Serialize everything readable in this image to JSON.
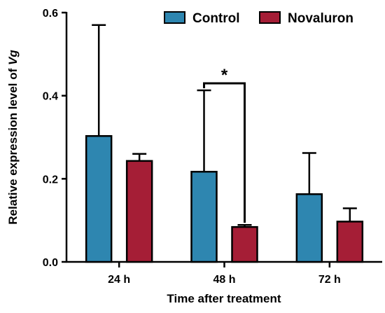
{
  "chart_data": {
    "type": "bar",
    "categories": [
      "24 h",
      "48 h",
      "72 h"
    ],
    "series": [
      {
        "name": "Control",
        "color": "#2e86b0",
        "values": [
          0.303,
          0.217,
          0.163
        ],
        "errors": [
          0.267,
          0.196,
          0.099
        ]
      },
      {
        "name": "Novaluron",
        "color": "#a51e36",
        "values": [
          0.243,
          0.084,
          0.097
        ],
        "errors": [
          0.017,
          0.005,
          0.032
        ]
      }
    ],
    "xlabel": "Time after treatment",
    "ylabel_prefix": "Relative expression level of ",
    "ylabel_gene": "Vg",
    "ylim": [
      0,
      0.6
    ],
    "yticks": [
      0.0,
      0.2,
      0.4,
      0.6
    ],
    "ytick_labels": [
      "0.0",
      "0.2",
      "0.4",
      "0.6"
    ],
    "grid": false,
    "legend_position": "top-right",
    "significance": [
      {
        "category": "48 h",
        "label": "*"
      }
    ]
  }
}
